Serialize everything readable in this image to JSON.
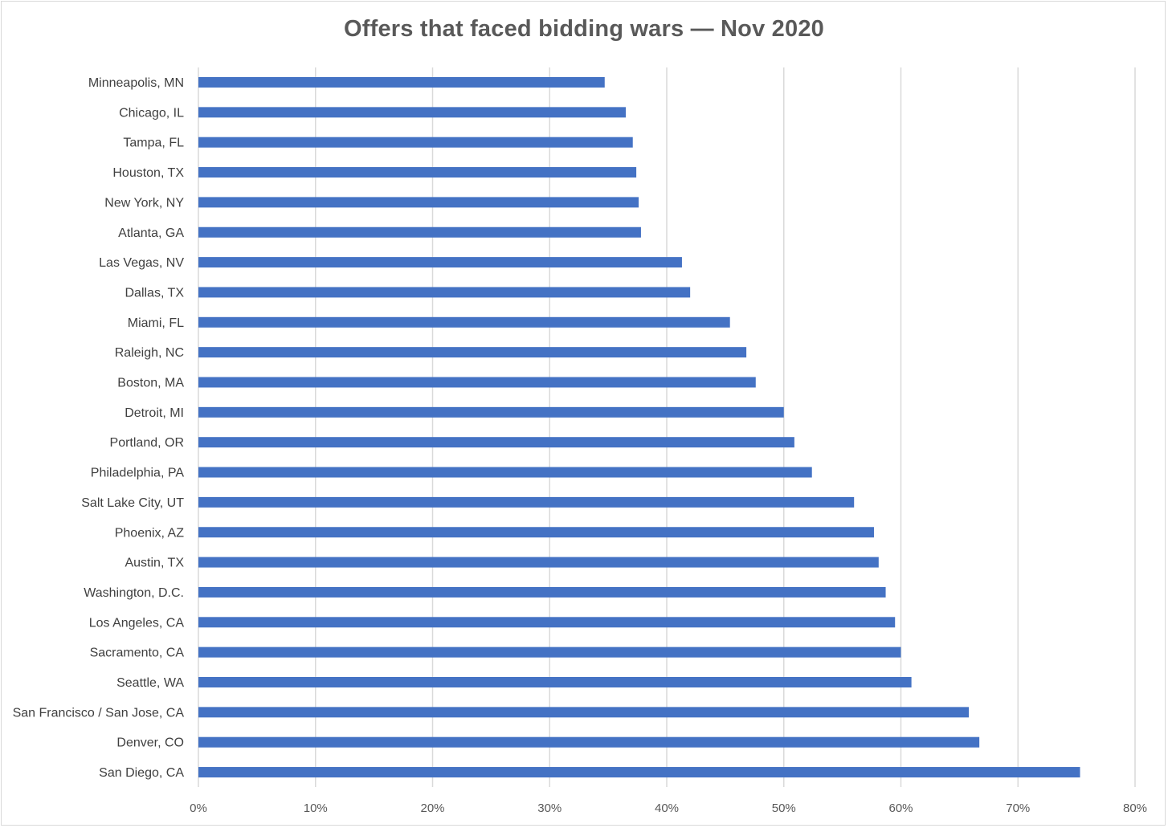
{
  "chart_data": {
    "type": "bar",
    "orientation": "horizontal",
    "title": "Offers that faced bidding wars — Nov 2020",
    "xlabel": "",
    "ylabel": "",
    "xlim": [
      0,
      0.8
    ],
    "x_ticks": [
      "0%",
      "10%",
      "20%",
      "30%",
      "40%",
      "50%",
      "60%",
      "70%",
      "80%"
    ],
    "grid": "vertical",
    "legend": "none",
    "bar_color": "#4472C4",
    "gridline_color": "#d9d9d9",
    "categories": [
      "Minneapolis, MN",
      "Chicago, IL",
      "Tampa, FL",
      "Houston, TX",
      "New York, NY",
      "Atlanta, GA",
      "Las Vegas, NV",
      "Dallas, TX",
      "Miami, FL",
      "Raleigh, NC",
      "Boston, MA",
      "Detroit, MI",
      "Portland, OR",
      "Philadelphia, PA",
      "Salt Lake City, UT",
      "Phoenix, AZ",
      "Austin, TX",
      "Washington, D.C.",
      "Los Angeles, CA",
      "Sacramento, CA",
      "Seattle, WA",
      "San Francisco / San Jose, CA",
      "Denver, CO",
      "San Diego, CA"
    ],
    "values": [
      0.347,
      0.365,
      0.371,
      0.374,
      0.376,
      0.378,
      0.413,
      0.42,
      0.454,
      0.468,
      0.476,
      0.5,
      0.509,
      0.524,
      0.56,
      0.577,
      0.581,
      0.587,
      0.595,
      0.6,
      0.609,
      0.658,
      0.667,
      0.753
    ]
  }
}
